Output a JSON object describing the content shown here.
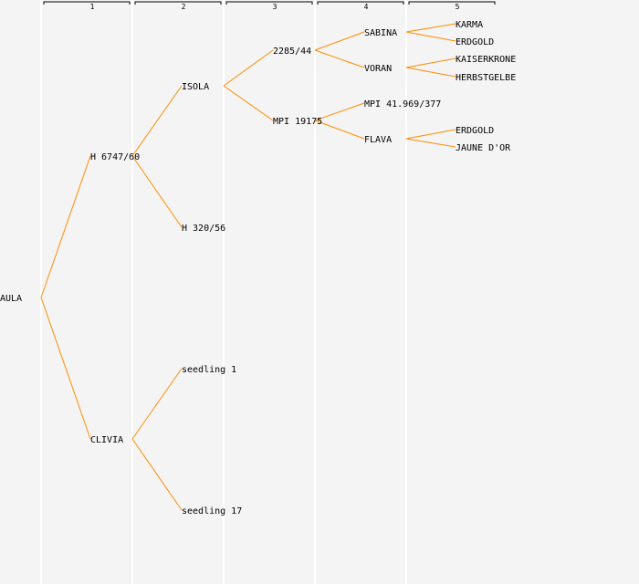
{
  "generations": [
    "1",
    "2",
    "3",
    "4",
    "5"
  ],
  "colors": {
    "line": "#ff8c00",
    "column": "#ffffff",
    "background": "#f4f4f4"
  },
  "tree": {
    "name": "AULA",
    "parents": [
      {
        "name": "H 6747/60",
        "parents": [
          {
            "name": "ISOLA",
            "parents": [
              {
                "name": "2285/44",
                "parents": [
                  {
                    "name": "SABINA",
                    "parents": [
                      {
                        "name": "KARMA"
                      },
                      {
                        "name": "ERDGOLD"
                      }
                    ]
                  },
                  {
                    "name": "VORAN",
                    "parents": [
                      {
                        "name": "KAISERKRONE"
                      },
                      {
                        "name": "HERBSTGELBE"
                      }
                    ]
                  }
                ]
              },
              {
                "name": "MPI 19175",
                "parents": [
                  {
                    "name": "MPI 41.969/377"
                  },
                  {
                    "name": "FLAVA",
                    "parents": [
                      {
                        "name": "ERDGOLD"
                      },
                      {
                        "name": "JAUNE D'OR"
                      }
                    ]
                  }
                ]
              }
            ]
          },
          {
            "name": "H 320/56"
          }
        ]
      },
      {
        "name": "CLIVIA",
        "parents": [
          {
            "name": "seedling 1"
          },
          {
            "name": "seedling 17"
          }
        ]
      }
    ]
  }
}
